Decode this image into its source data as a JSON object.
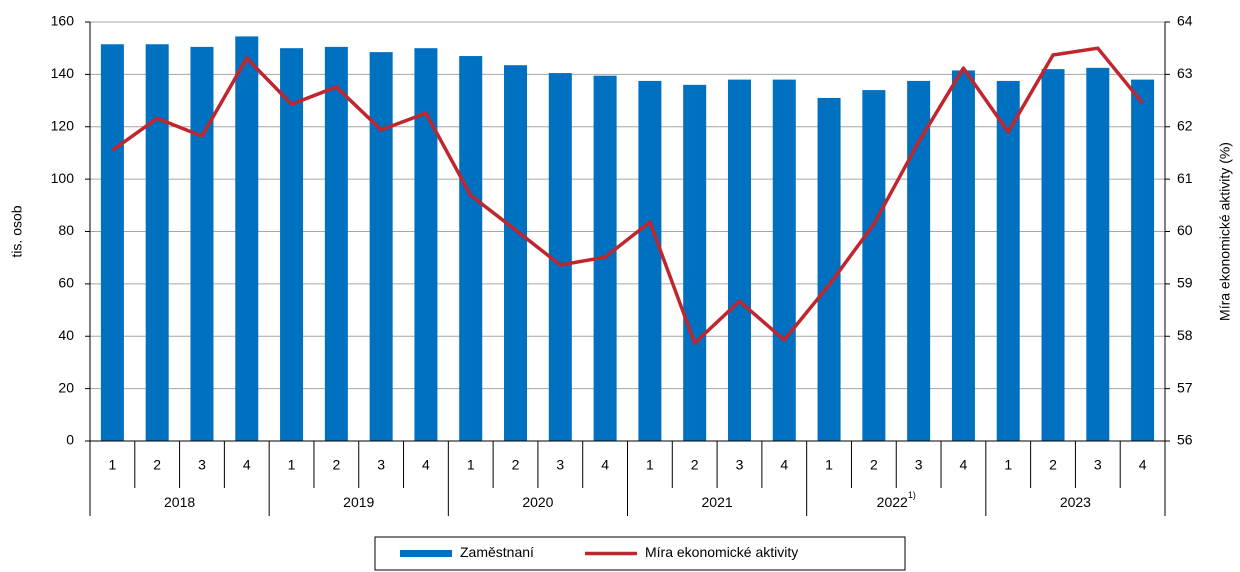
{
  "chart_data": {
    "type": "bar",
    "categories": [
      "1",
      "2",
      "3",
      "4",
      "1",
      "2",
      "3",
      "4",
      "1",
      "2",
      "3",
      "4",
      "1",
      "2",
      "3",
      "4",
      "1",
      "2",
      "3",
      "4",
      "1",
      "2",
      "3",
      "4"
    ],
    "groups": [
      {
        "name": "2018"
      },
      {
        "name": "2019"
      },
      {
        "name": "2020"
      },
      {
        "name": "2021"
      },
      {
        "name": "2022",
        "note": "1)"
      },
      {
        "name": "2023"
      }
    ],
    "ylabel": "tis. osob",
    "y2label": "Míra ekonomické aktivity (%)",
    "ylim": [
      0,
      160
    ],
    "yticks": [
      0,
      20,
      40,
      60,
      80,
      100,
      120,
      140,
      160
    ],
    "y2lim": [
      56,
      64
    ],
    "y2ticks": [
      56,
      57,
      58,
      59,
      60,
      61,
      62,
      63,
      64
    ],
    "grid": true,
    "legend": "bottom",
    "series": [
      {
        "name": "Zaměstnaní",
        "type": "bar",
        "color": "#0070c0",
        "values": [
          151.5,
          151.5,
          150.5,
          154.5,
          150,
          150.5,
          148.5,
          150,
          147,
          143.5,
          140.5,
          139.5,
          137.5,
          136,
          138,
          138,
          131,
          134,
          137.5,
          141.5,
          137.5,
          142,
          142.5,
          138
        ]
      },
      {
        "name": "Míra ekonomické aktivity",
        "type": "line",
        "axis": "y2",
        "color": "#c0262d",
        "values": [
          61.55,
          62.16,
          61.82,
          63.31,
          62.43,
          62.76,
          61.94,
          62.26,
          60.69,
          60.03,
          59.36,
          59.51,
          60.18,
          57.87,
          58.67,
          57.93,
          58.98,
          60.14,
          61.71,
          63.12,
          61.9,
          63.37,
          63.5,
          62.45
        ]
      }
    ]
  }
}
